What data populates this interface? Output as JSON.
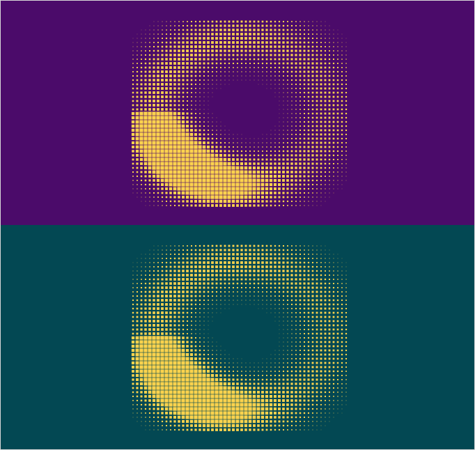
{
  "panels": [
    {
      "id": "top",
      "background_color": "#4b0b6a",
      "dot_color": "#fcd34d"
    },
    {
      "id": "bottom",
      "background_color": "#034853",
      "dot_color": "#fcd34d"
    }
  ]
}
